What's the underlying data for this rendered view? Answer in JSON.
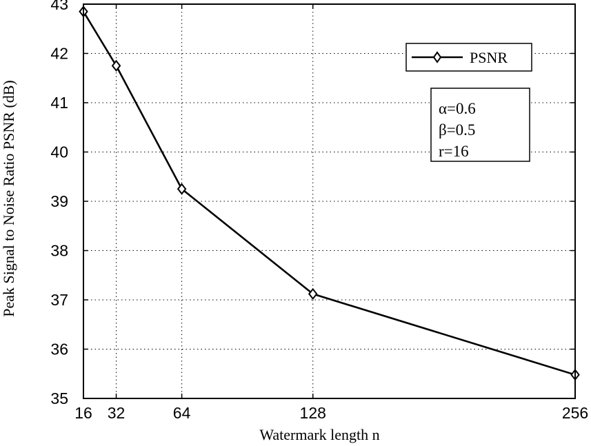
{
  "chart_data": {
    "type": "line",
    "title": "",
    "xlabel": "Watermark length n",
    "ylabel": "Peak Signal to Noise Ratio PSNR (dB)",
    "xlim": [
      16,
      256
    ],
    "ylim": [
      35,
      43
    ],
    "x_ticks": [
      16,
      32,
      64,
      128,
      256
    ],
    "y_ticks": [
      35,
      36,
      37,
      38,
      39,
      40,
      41,
      42,
      43
    ],
    "grid": true,
    "legend_position": "top-right",
    "series": [
      {
        "name": "PSNR",
        "marker": "diamond",
        "color": "#000000",
        "x": [
          16,
          32,
          64,
          128,
          256
        ],
        "y": [
          42.85,
          41.75,
          39.25,
          37.12,
          35.48
        ]
      }
    ],
    "annotations": [
      "α=0.6",
      "β=0.5",
      "r=16"
    ]
  }
}
